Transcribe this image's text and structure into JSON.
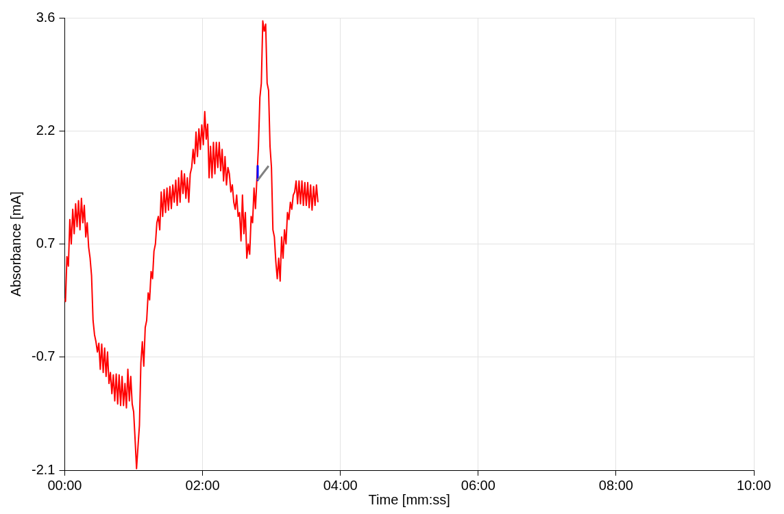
{
  "chart_data": {
    "type": "line",
    "xlabel": "Time [mm:ss]",
    "ylabel": "Absorbance [mA]",
    "xlim": [
      0,
      10
    ],
    "xticks": [
      {
        "value": 0,
        "label": "00:00"
      },
      {
        "value": 2,
        "label": "02:00"
      },
      {
        "value": 4,
        "label": "04:00"
      },
      {
        "value": 6,
        "label": "06:00"
      },
      {
        "value": 8,
        "label": "08:00"
      },
      {
        "value": 10,
        "label": "10:00"
      }
    ],
    "ylim": [
      -2.13,
      3.61
    ],
    "yticks": [
      {
        "value": -2.13,
        "label": "-2.1"
      },
      {
        "value": -0.695,
        "label": "-0.7"
      },
      {
        "value": 0.74,
        "label": "0.7"
      },
      {
        "value": 2.175,
        "label": "2.2"
      },
      {
        "value": 3.61,
        "label": "3.6"
      }
    ],
    "grid": true,
    "legend": false,
    "marker": "none",
    "line_style": "solid",
    "series": [
      {
        "color": "#ff0000",
        "x": [
          0,
          0.011,
          0.032,
          0.053,
          0.074,
          0.095,
          0.116,
          0.137,
          0.158,
          0.179,
          0.2,
          0.221,
          0.242,
          0.263,
          0.284,
          0.305,
          0.326,
          0.347,
          0.368,
          0.389,
          0.411,
          0.432,
          0.453,
          0.474,
          0.495,
          0.516,
          0.537,
          0.558,
          0.579,
          0.6,
          0.621,
          0.642,
          0.663,
          0.684,
          0.705,
          0.726,
          0.747,
          0.768,
          0.789,
          0.811,
          0.832,
          0.853,
          0.874,
          0.895,
          0.916,
          0.937,
          0.958,
          0.979,
          1.0,
          1.021,
          1.042,
          1.063,
          1.084,
          1.105,
          1.126,
          1.147,
          1.168,
          1.189,
          1.211,
          1.232,
          1.253,
          1.274,
          1.295,
          1.316,
          1.337,
          1.358,
          1.379,
          1.4,
          1.421,
          1.442,
          1.463,
          1.484,
          1.505,
          1.526,
          1.547,
          1.568,
          1.589,
          1.611,
          1.632,
          1.653,
          1.674,
          1.695,
          1.716,
          1.737,
          1.758,
          1.779,
          1.8,
          1.821,
          1.842,
          1.863,
          1.884,
          1.905,
          1.926,
          1.947,
          1.968,
          1.989,
          2.011,
          2.032,
          2.053,
          2.074,
          2.095,
          2.116,
          2.137,
          2.158,
          2.179,
          2.2,
          2.221,
          2.242,
          2.263,
          2.284,
          2.305,
          2.326,
          2.347,
          2.368,
          2.389,
          2.411,
          2.432,
          2.453,
          2.474,
          2.495,
          2.516,
          2.537,
          2.558,
          2.579,
          2.6,
          2.621,
          2.642,
          2.663,
          2.684,
          2.705,
          2.726,
          2.747,
          2.768,
          2.789,
          2.811,
          2.832,
          2.853,
          2.874,
          2.895,
          2.916,
          2.937,
          2.958,
          2.979,
          3.0,
          3.021,
          3.042,
          3.063,
          3.084,
          3.105,
          3.126,
          3.147,
          3.168,
          3.189,
          3.211,
          3.232,
          3.253,
          3.274,
          3.295,
          3.316,
          3.337,
          3.358,
          3.379,
          3.4,
          3.421,
          3.442,
          3.463,
          3.484,
          3.505,
          3.526,
          3.547,
          3.568,
          3.589,
          3.611,
          3.632,
          3.653,
          3.674
        ],
        "values": [
          0.05,
          0.01,
          0.58,
          0.46,
          1.05,
          0.74,
          1.18,
          0.87,
          1.25,
          0.96,
          1.29,
          0.92,
          1.32,
          1.01,
          1.23,
          0.83,
          1.01,
          0.7,
          0.56,
          0.34,
          -0.23,
          -0.41,
          -0.5,
          -0.63,
          -0.52,
          -0.85,
          -0.53,
          -0.89,
          -0.58,
          -0.94,
          -0.63,
          -1.03,
          -0.89,
          -1.16,
          -0.92,
          -1.25,
          -0.91,
          -1.29,
          -0.92,
          -1.31,
          -0.94,
          -1.31,
          -1.03,
          -1.34,
          -0.85,
          -1.25,
          -0.94,
          -1.29,
          -1.39,
          -1.74,
          -2.11,
          -1.83,
          -1.56,
          -0.77,
          -0.5,
          -0.81,
          -0.32,
          -0.23,
          0.12,
          0.03,
          0.39,
          0.3,
          0.65,
          0.74,
          1.01,
          1.09,
          0.92,
          1.4,
          1.09,
          1.43,
          1.14,
          1.45,
          1.17,
          1.47,
          1.19,
          1.49,
          1.27,
          1.55,
          1.23,
          1.58,
          1.27,
          1.67,
          1.38,
          1.63,
          1.32,
          1.58,
          1.27,
          1.63,
          1.71,
          1.94,
          1.76,
          2.16,
          1.85,
          2.2,
          1.94,
          2.25,
          2.0,
          2.42,
          2.07,
          2.26,
          1.58,
          1.98,
          1.58,
          2.03,
          1.63,
          2.03,
          1.71,
          2.03,
          1.67,
          1.94,
          1.54,
          1.85,
          1.49,
          1.71,
          1.63,
          1.4,
          1.49,
          1.27,
          1.18,
          1.36,
          1.09,
          1.14,
          0.78,
          1.36,
          0.87,
          1.14,
          0.56,
          0.74,
          0.61,
          1.09,
          1.01,
          1.45,
          1.19,
          1.58,
          1.98,
          2.6,
          2.78,
          3.57,
          3.44,
          3.53,
          2.78,
          2.69,
          1.98,
          1.71,
          0.92,
          0.83,
          0.52,
          0.3,
          0.56,
          0.27,
          0.83,
          0.56,
          0.92,
          0.74,
          1.14,
          1.05,
          1.27,
          1.18,
          1.36,
          1.4,
          1.54,
          1.25,
          1.54,
          1.25,
          1.54,
          1.23,
          1.52,
          1.23,
          1.52,
          1.2,
          1.49,
          1.17,
          1.47,
          1.23,
          1.49,
          1.27
        ]
      },
      {
        "color": "#0000ff",
        "x": [
          2.8,
          2.8
        ],
        "values": [
          1.73,
          1.55
        ]
      },
      {
        "color": "#808080",
        "x": [
          2.8,
          2.958
        ],
        "values": [
          1.55,
          1.73
        ]
      }
    ]
  }
}
